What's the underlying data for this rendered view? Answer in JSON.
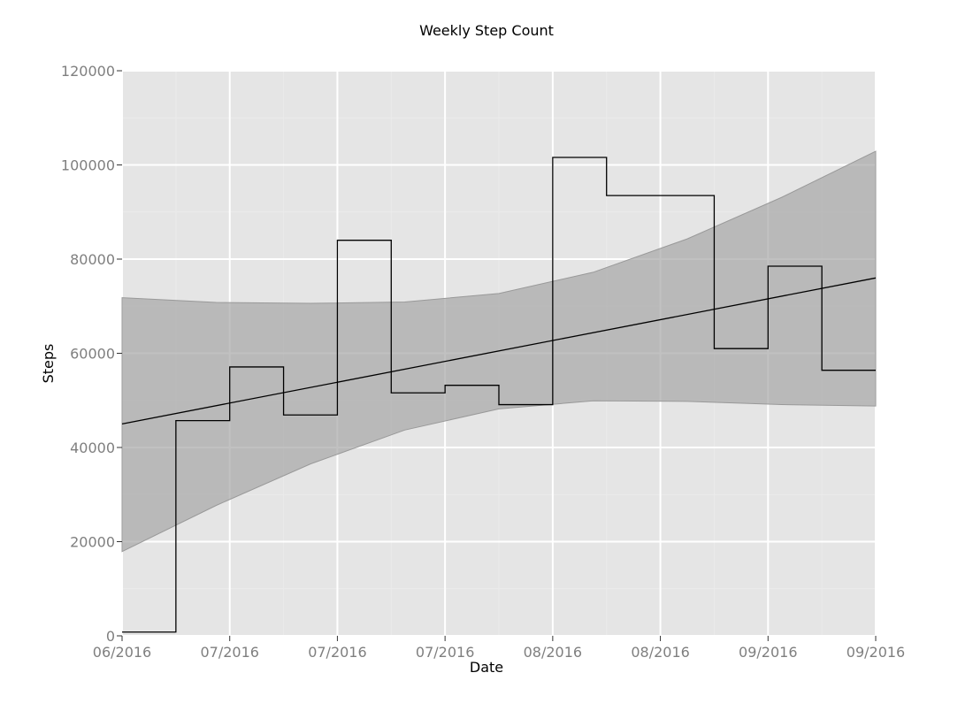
{
  "chart_data": {
    "type": "line",
    "title": "Weekly Step Count",
    "xlabel": "Date",
    "ylabel": "Steps",
    "ylim": [
      0,
      120000
    ],
    "yticks": [
      0,
      20000,
      40000,
      60000,
      80000,
      100000,
      120000
    ],
    "ytick_labels": [
      "0",
      "20000",
      "40000",
      "60000",
      "80000",
      "100000",
      "120000"
    ],
    "xtick_labels": [
      "06/2016",
      "07/2016",
      "07/2016",
      "07/2016",
      "08/2016",
      "08/2016",
      "09/2016",
      "09/2016"
    ],
    "grid": true,
    "step_series": {
      "name": "",
      "style": "step",
      "values": [
        800,
        45700,
        57100,
        46900,
        84000,
        51600,
        53200,
        49100,
        101600,
        93500,
        93500,
        61000,
        78500,
        56400
      ]
    },
    "trend_line": {
      "name": "",
      "start": 45000,
      "end": 76000
    },
    "confidence_band": {
      "upper": [
        71800,
        70800,
        70600,
        70900,
        72700,
        77200,
        84300,
        93100,
        102900
      ],
      "lower": [
        17900,
        27700,
        36500,
        43700,
        48200,
        49900,
        49800,
        49100,
        48800
      ]
    },
    "colors": {
      "panel_bg": "#e5e5e5",
      "band": "#a6a6a6",
      "line": "#000000"
    }
  }
}
